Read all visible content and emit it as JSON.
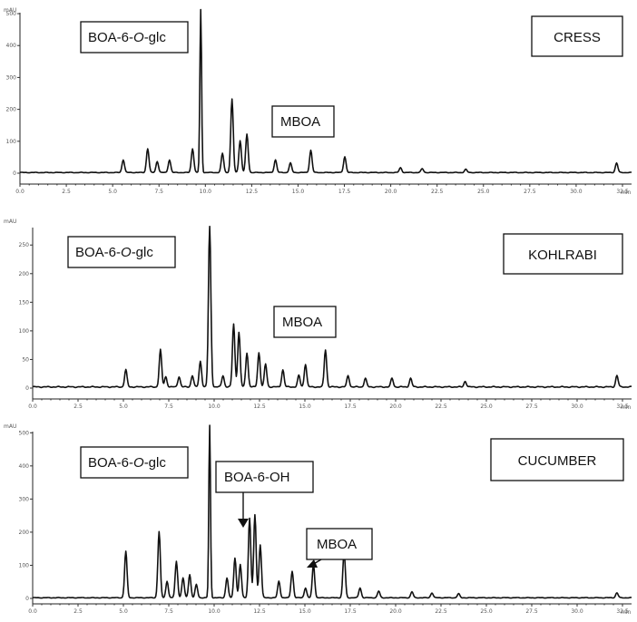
{
  "chart_data": [
    {
      "type": "line",
      "sample": "CRESS",
      "y_unit": "mAU",
      "x_unit": "min",
      "xlim": [
        0,
        45
      ],
      "ylim": [
        0,
        520
      ],
      "x_ticks": [
        "0.0",
        "2.5",
        "5.0",
        "7.5",
        "10.0",
        "12.5",
        "15.0",
        "17.5",
        "20.0",
        "22.5",
        "25.0",
        "27.5",
        "30.0",
        "32.5"
      ],
      "y_ticks": [
        0,
        100,
        200,
        300,
        400,
        500
      ],
      "annotations": [
        {
          "italic_split": [
            "BOA-6-",
            "O",
            "-glc"
          ]
        },
        {
          "italic_split": [
            "MBOA",
            "",
            ""
          ]
        }
      ],
      "peaks": [
        {
          "x": 7.6,
          "y": 40
        },
        {
          "x": 9.4,
          "y": 75
        },
        {
          "x": 10.1,
          "y": 35
        },
        {
          "x": 11.0,
          "y": 40
        },
        {
          "x": 12.7,
          "y": 75
        },
        {
          "x": 13.3,
          "y": 510
        },
        {
          "x": 14.9,
          "y": 60
        },
        {
          "x": 15.6,
          "y": 230
        },
        {
          "x": 16.2,
          "y": 100
        },
        {
          "x": 16.7,
          "y": 120
        },
        {
          "x": 18.8,
          "y": 40
        },
        {
          "x": 19.9,
          "y": 30
        },
        {
          "x": 21.4,
          "y": 70
        },
        {
          "x": 23.9,
          "y": 50
        },
        {
          "x": 28.0,
          "y": 15
        },
        {
          "x": 29.6,
          "y": 12
        },
        {
          "x": 32.8,
          "y": 10
        },
        {
          "x": 43.9,
          "y": 30
        }
      ]
    },
    {
      "type": "line",
      "sample": "KOHLRABI",
      "y_unit": "mAU",
      "x_unit": "min",
      "xlim": [
        0,
        45
      ],
      "ylim": [
        0,
        290
      ],
      "x_ticks": [
        "0.0",
        "2.5",
        "5.0",
        "7.5",
        "10.0",
        "12.5",
        "15.0",
        "17.5",
        "20.0",
        "22.5",
        "25.0",
        "27.5",
        "30.0",
        "32.5"
      ],
      "y_ticks": [
        0,
        50,
        100,
        150,
        200,
        250
      ],
      "annotations": [
        {
          "italic_split": [
            "BOA-6-",
            "O",
            "-glc"
          ]
        },
        {
          "italic_split": [
            "MBOA",
            "",
            ""
          ]
        }
      ],
      "peaks": [
        {
          "x": 7.0,
          "y": 30
        },
        {
          "x": 9.6,
          "y": 65
        },
        {
          "x": 10.0,
          "y": 18
        },
        {
          "x": 11.0,
          "y": 18
        },
        {
          "x": 12.0,
          "y": 20
        },
        {
          "x": 12.6,
          "y": 45
        },
        {
          "x": 13.3,
          "y": 280
        },
        {
          "x": 14.3,
          "y": 20
        },
        {
          "x": 15.1,
          "y": 110
        },
        {
          "x": 15.5,
          "y": 95
        },
        {
          "x": 16.1,
          "y": 60
        },
        {
          "x": 17.0,
          "y": 60
        },
        {
          "x": 17.5,
          "y": 40
        },
        {
          "x": 18.8,
          "y": 30
        },
        {
          "x": 20.0,
          "y": 20
        },
        {
          "x": 20.5,
          "y": 40
        },
        {
          "x": 22.0,
          "y": 65
        },
        {
          "x": 23.7,
          "y": 20
        },
        {
          "x": 25.0,
          "y": 15
        },
        {
          "x": 27.0,
          "y": 15
        },
        {
          "x": 28.4,
          "y": 15
        },
        {
          "x": 32.5,
          "y": 10
        },
        {
          "x": 43.9,
          "y": 20
        }
      ]
    },
    {
      "type": "line",
      "sample": "CUCUMBER",
      "y_unit": "mAU",
      "x_unit": "min",
      "xlim": [
        0,
        45
      ],
      "ylim": [
        0,
        520
      ],
      "x_ticks": [
        "0.0",
        "2.5",
        "5.0",
        "7.5",
        "10.0",
        "12.5",
        "15.0",
        "17.5",
        "20.0",
        "22.5",
        "25.0",
        "27.5",
        "30.0",
        "32.5"
      ],
      "y_ticks": [
        0,
        100,
        200,
        300,
        400,
        500
      ],
      "annotations": [
        {
          "italic_split": [
            "BOA-6-",
            "O",
            "-glc"
          ]
        },
        {
          "italic_split": [
            "BOA-6-OH",
            "",
            ""
          ]
        },
        {
          "italic_split": [
            "MBOA",
            "",
            ""
          ]
        }
      ],
      "peaks": [
        {
          "x": 7.0,
          "y": 140
        },
        {
          "x": 9.5,
          "y": 200
        },
        {
          "x": 10.1,
          "y": 50
        },
        {
          "x": 10.8,
          "y": 110
        },
        {
          "x": 11.3,
          "y": 60
        },
        {
          "x": 11.8,
          "y": 70
        },
        {
          "x": 12.3,
          "y": 40
        },
        {
          "x": 13.3,
          "y": 520
        },
        {
          "x": 14.6,
          "y": 60
        },
        {
          "x": 15.2,
          "y": 120
        },
        {
          "x": 15.6,
          "y": 100
        },
        {
          "x": 16.3,
          "y": 240
        },
        {
          "x": 16.7,
          "y": 250
        },
        {
          "x": 17.1,
          "y": 160
        },
        {
          "x": 18.5,
          "y": 50
        },
        {
          "x": 19.5,
          "y": 80
        },
        {
          "x": 20.5,
          "y": 30
        },
        {
          "x": 21.1,
          "y": 100
        },
        {
          "x": 23.4,
          "y": 140
        },
        {
          "x": 24.6,
          "y": 30
        },
        {
          "x": 26.0,
          "y": 20
        },
        {
          "x": 28.5,
          "y": 18
        },
        {
          "x": 30.0,
          "y": 15
        },
        {
          "x": 32.0,
          "y": 12
        },
        {
          "x": 43.9,
          "y": 15
        }
      ]
    }
  ],
  "labels": {
    "cress": "CRESS",
    "kohlrabi": "KOHLRABI",
    "cucumber": "CUCUMBER",
    "unit_y": "mAU",
    "unit_x": "min"
  }
}
